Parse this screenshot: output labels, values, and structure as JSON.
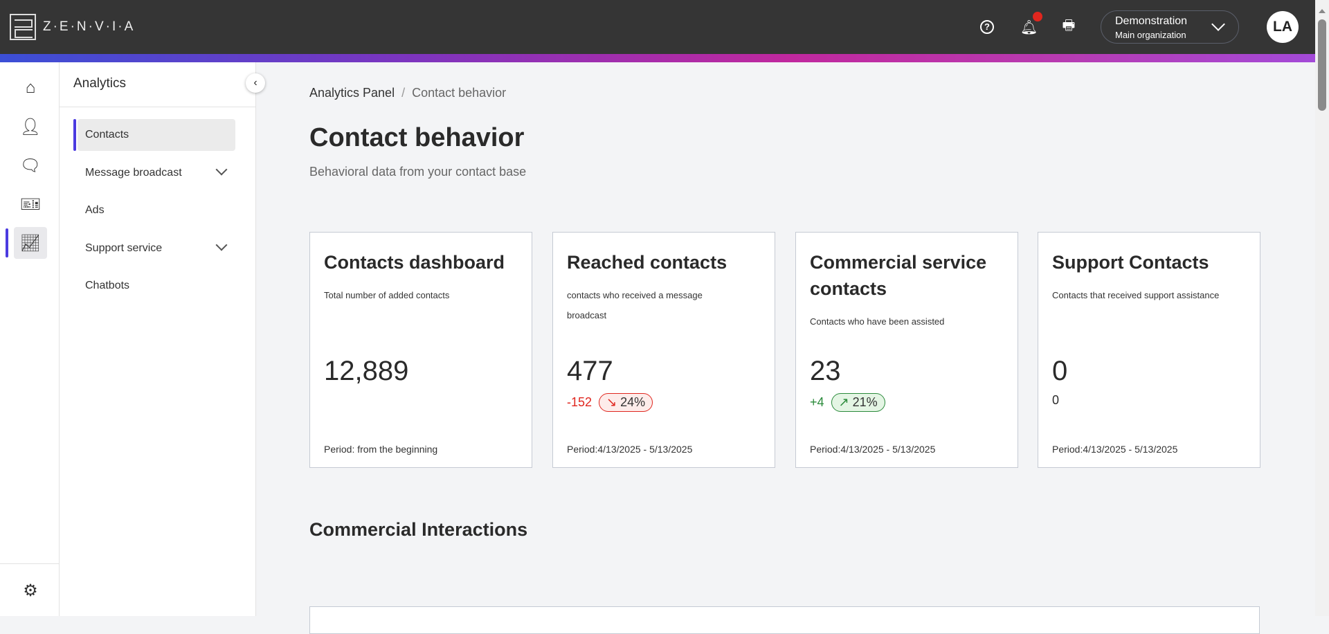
{
  "header": {
    "logo_text": "Z·E·N·V·I·A",
    "org_name": "Demonstration",
    "org_sub": "Main organization",
    "avatar": "LA",
    "help": "?"
  },
  "colors": {
    "accent": "#4b3be0",
    "negative": "#e0261e",
    "positive": "#2a8a3a",
    "header_bg": "#353535"
  },
  "rail": {
    "items": [
      "home-icon",
      "user-icon",
      "chat-icon",
      "ticket-icon",
      "chart-icon"
    ],
    "bottom": "gear-icon"
  },
  "sidebar": {
    "title": "Analytics",
    "items": [
      {
        "label": "Contacts"
      },
      {
        "label": "Message broadcast"
      },
      {
        "label": "Ads"
      },
      {
        "label": "Support service"
      },
      {
        "label": "Chatbots"
      }
    ]
  },
  "breadcrumb": {
    "root": "Analytics Panel",
    "sep": "/",
    "current": "Contact behavior"
  },
  "page": {
    "title": "Contact behavior",
    "subtitle": "Behavioral data from your contact base",
    "section": "Commercial Interactions"
  },
  "cards": [
    {
      "title": "Contacts dashboard",
      "desc": "Total number of added contacts",
      "value": "12,889",
      "period": "Period: from the beginning"
    },
    {
      "title": "Reached contacts",
      "desc": "contacts who received a message broadcast",
      "value": "477",
      "delta": "-152",
      "pct": "24%",
      "arrow": "↘",
      "period": "Period:4/13/2025 - 5/13/2025"
    },
    {
      "title": "Commercial service contacts",
      "desc": "Contacts who have been assisted",
      "value": "23",
      "delta": "+4",
      "pct": "21%",
      "arrow": "↗",
      "period": "Period:4/13/2025 - 5/13/2025"
    },
    {
      "title": "Support Contacts",
      "desc": "Contacts that received support assistance",
      "value": "0",
      "delta": "0",
      "period": "Period:4/13/2025 - 5/13/2025"
    }
  ]
}
